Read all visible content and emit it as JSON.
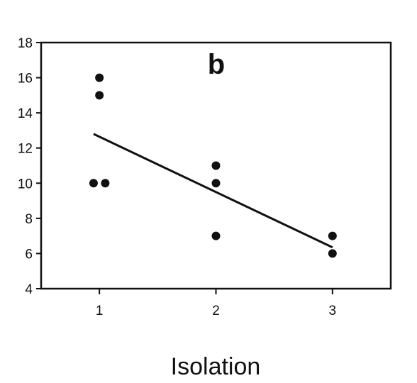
{
  "chart_data": {
    "type": "scatter",
    "title": "",
    "panel_label": "b",
    "xlabel": "Isolation",
    "ylabel": "",
    "xlim": [
      0.5,
      3.5
    ],
    "ylim": [
      4,
      18
    ],
    "x_ticks": [
      1,
      2,
      3
    ],
    "y_ticks": [
      4,
      6,
      8,
      10,
      12,
      14,
      16,
      18
    ],
    "grid": false,
    "legend": "none",
    "points": [
      {
        "x": 0.95,
        "y": 10
      },
      {
        "x": 1.05,
        "y": 10
      },
      {
        "x": 1.0,
        "y": 15
      },
      {
        "x": 1.0,
        "y": 16
      },
      {
        "x": 2.0,
        "y": 7
      },
      {
        "x": 2.0,
        "y": 10
      },
      {
        "x": 2.0,
        "y": 11
      },
      {
        "x": 3.0,
        "y": 6
      },
      {
        "x": 3.0,
        "y": 7
      }
    ],
    "trend_line": {
      "x": [
        0.95,
        3.0
      ],
      "y": [
        12.8,
        6.35
      ]
    },
    "colors": {
      "marker": "#111111",
      "line": "#111111",
      "axis": "#111111"
    }
  }
}
